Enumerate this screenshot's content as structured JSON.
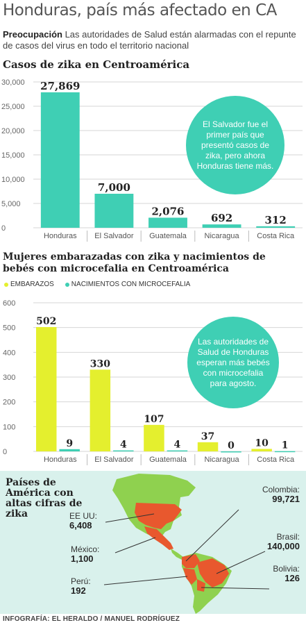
{
  "headline": "Honduras, país más afectado en CA",
  "intro": {
    "lead": "Preocupación",
    "text": " Las autoridades de Salud están alarmadas con el repunte de casos del virus en todo el territorio nacional"
  },
  "chart_data": [
    {
      "type": "bar",
      "title": "Casos de zika en Centroamérica",
      "categories": [
        "Honduras",
        "El Salvador",
        "Guatemala",
        "Nicaragua",
        "Costa Rica"
      ],
      "values": [
        27869,
        7000,
        2076,
        692,
        312
      ],
      "value_labels": [
        "27,869",
        "7,000",
        "2,076",
        "692",
        "312"
      ],
      "ylim": [
        0,
        30000
      ],
      "yticks": [
        0,
        5000,
        10000,
        15000,
        20000,
        25000,
        30000
      ],
      "ytick_labels": [
        "0",
        "5,000",
        "10,000",
        "15,000",
        "20,000",
        "25,000",
        "30,000"
      ],
      "grid": true,
      "color": "#3fcfb4",
      "annotation": "El Salvador fue el primer país que presentó casos de zika, pero ahora Honduras tiene más."
    },
    {
      "type": "bar",
      "title": "Mujeres embarazadas con zika y nacimientos de bebés con microcefalia en Centroamérica",
      "categories": [
        "Honduras",
        "El Salvador",
        "Guatemala",
        "Nicaragua",
        "Costa Rica"
      ],
      "series": [
        {
          "name": "EMBARAZOS",
          "values": [
            502,
            330,
            107,
            37,
            10
          ],
          "labels": [
            "502",
            "330",
            "107",
            "37",
            "10"
          ],
          "color": "#e4ef2e"
        },
        {
          "name": "NACIMIENTOS CON MICROCEFALIA",
          "values": [
            9,
            4,
            4,
            0,
            1
          ],
          "labels": [
            "9",
            "4",
            "4",
            "0",
            "1"
          ],
          "color": "#3fcfb4"
        }
      ],
      "ylim": [
        0,
        600
      ],
      "yticks": [
        0,
        100,
        200,
        300,
        400,
        500,
        600
      ],
      "grid": true,
      "legend": "top-left",
      "annotation": "Las autoridades de Salud de Honduras esperan más bebés con microcefalia para agosto."
    }
  ],
  "map": {
    "title": "Países de América con altas cifras de zika",
    "land_color": "#8fd14f",
    "highlight_color": "#e8582e",
    "countries": [
      {
        "name": "EE UU:",
        "value": "6,408"
      },
      {
        "name": "México:",
        "value": "1,100"
      },
      {
        "name": "Perú:",
        "value": "192"
      },
      {
        "name": "Colombia:",
        "value": "99,721"
      },
      {
        "name": "Brasil:",
        "value": "140,000"
      },
      {
        "name": "Bolivia:",
        "value": "126"
      }
    ]
  },
  "credit": "INFOGRAFÍA: EL HERALDO / MANUEL RODRÍGUEZ"
}
